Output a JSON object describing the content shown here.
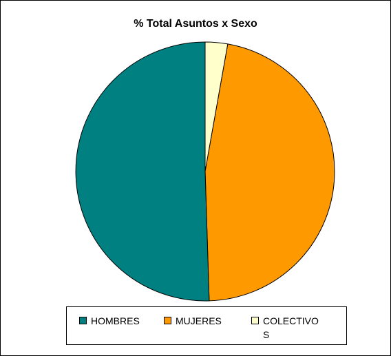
{
  "chart_data": {
    "type": "pie",
    "title": "% Total Asuntos x Sexo",
    "categories": [
      "HOMBRES",
      "MUJERES",
      "COLECTIVOS"
    ],
    "legend_labels": [
      "HOMBRES",
      "MUJERES",
      "COLECTIVO\nS"
    ],
    "values": [
      50.5,
      46.7,
      2.8
    ],
    "unit": "%",
    "colors": [
      "#008080",
      "#FF9900",
      "#FFFFCC"
    ],
    "start_angle_deg": 0,
    "direction": "clockwise",
    "legend_position": "bottom"
  }
}
